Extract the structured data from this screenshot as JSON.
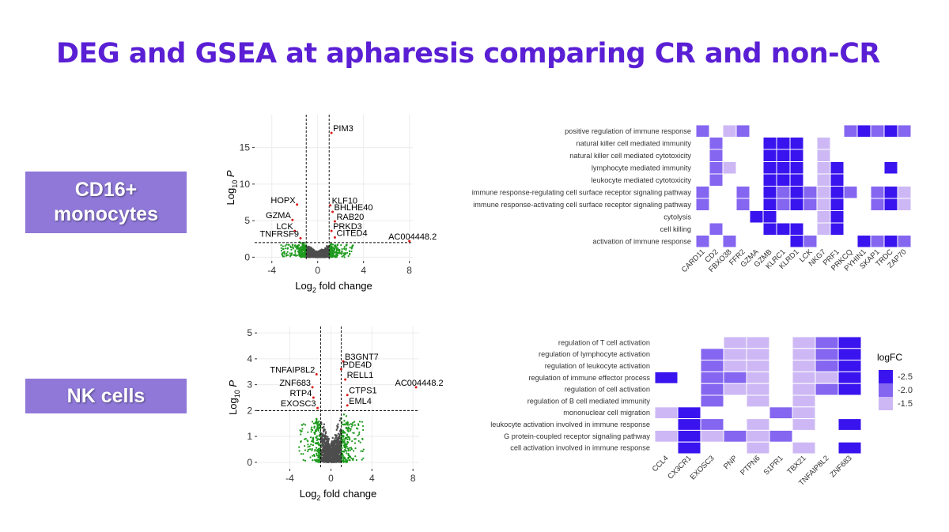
{
  "title": "DEG and GSEA at apharesis comparing CR and non-CR",
  "colors": {
    "title": "#5a1fd4",
    "label_box": "#8f78d8",
    "heat_dark": "#3a14ee",
    "heat_mid": "#8466f0",
    "heat_light": "#cdb8f5",
    "point_ns": "#4d4d4d",
    "point_sig": "#1e9a1e",
    "point_red": "#d81b1b"
  },
  "labels": {
    "cd16": "CD16+\nmonocytes",
    "nk": "NK cells"
  },
  "chart_data": [
    {
      "id": "volcano_cd16",
      "type": "scatter",
      "xlabel": "Log2 fold change",
      "ylabel": "Log10 P",
      "xlim": [
        -5.5,
        8.3
      ],
      "ylim": [
        -0.5,
        19.5
      ],
      "xticks": [
        -4,
        0,
        4,
        8
      ],
      "yticks": [
        0,
        5,
        10,
        15
      ],
      "fc_cutoff": [
        -1,
        1
      ],
      "p_cutoff": 2,
      "grid": true,
      "labeled_genes": [
        {
          "gene": "PIM3",
          "x": 1.2,
          "y": 17
        },
        {
          "gene": "HOPX",
          "x": -1.8,
          "y": 7.2
        },
        {
          "gene": "KLF10",
          "x": 1.1,
          "y": 7.1
        },
        {
          "gene": "BHLHE40",
          "x": 1.3,
          "y": 6.2
        },
        {
          "gene": "GZMA",
          "x": -2.2,
          "y": 5.1
        },
        {
          "gene": "RAB20",
          "x": 1.5,
          "y": 4.9
        },
        {
          "gene": "LCK",
          "x": -2.0,
          "y": 3.6
        },
        {
          "gene": "PRKD3",
          "x": 1.2,
          "y": 3.6
        },
        {
          "gene": "TNFRSF9",
          "x": -1.5,
          "y": 2.6
        },
        {
          "gene": "CITED4",
          "x": 1.5,
          "y": 2.7
        },
        {
          "gene": "AC004448.2",
          "x": 8.0,
          "y": 2.2
        }
      ]
    },
    {
      "id": "heatmap_cd16",
      "type": "heatmap",
      "rows": [
        "positive regulation of immune response",
        "natural killer cell mediated immunity",
        "natural killer cell mediated cytotoxicity",
        "lymphocyte mediated immunity",
        "leukocyte mediated cytotoxicity",
        "immune response-regulating cell surface receptor signaling pathway",
        "immune response-activating cell surface receptor signaling pathway",
        "cytolysis",
        "cell killing",
        "activation of immune response"
      ],
      "columns": [
        "CARD11",
        "CD2",
        "FBXO38",
        "FFR2",
        "GZMA",
        "GZMB",
        "KLRC1",
        "KLRD1",
        "LCK",
        "NKG7",
        "PRF1",
        "PRKCQ",
        "PYHIN1",
        "SKAP1",
        "TRDC",
        "ZAP70"
      ],
      "levels": [
        [
          2,
          0,
          3,
          2,
          0,
          0,
          0,
          0,
          0,
          0,
          0,
          2,
          1,
          2,
          1,
          2
        ],
        [
          0,
          2,
          0,
          0,
          0,
          1,
          1,
          1,
          0,
          3,
          0,
          0,
          0,
          0,
          0,
          0
        ],
        [
          0,
          2,
          0,
          0,
          0,
          1,
          1,
          1,
          0,
          3,
          0,
          0,
          0,
          0,
          0,
          0
        ],
        [
          0,
          2,
          3,
          0,
          0,
          1,
          1,
          1,
          0,
          3,
          1,
          0,
          0,
          0,
          1,
          0
        ],
        [
          0,
          2,
          0,
          0,
          0,
          1,
          1,
          1,
          0,
          3,
          1,
          0,
          0,
          0,
          0,
          0
        ],
        [
          2,
          0,
          0,
          2,
          0,
          1,
          2,
          1,
          2,
          3,
          1,
          2,
          0,
          2,
          1,
          3
        ],
        [
          2,
          0,
          0,
          2,
          0,
          1,
          2,
          1,
          2,
          3,
          1,
          0,
          0,
          2,
          1,
          3
        ],
        [
          0,
          0,
          0,
          0,
          1,
          1,
          0,
          0,
          0,
          3,
          1,
          0,
          0,
          0,
          0,
          0
        ],
        [
          0,
          2,
          0,
          0,
          0,
          1,
          1,
          1,
          0,
          3,
          1,
          0,
          0,
          0,
          0,
          0
        ],
        [
          2,
          0,
          2,
          0,
          0,
          0,
          0,
          1,
          2,
          0,
          0,
          0,
          1,
          2,
          1,
          2
        ]
      ]
    },
    {
      "id": "volcano_nk",
      "type": "scatter",
      "xlabel": "Log2 fold change",
      "ylabel": "Log10 P",
      "xlim": [
        -7.2,
        8.6
      ],
      "ylim": [
        -0.25,
        5.25
      ],
      "xticks": [
        -4,
        0,
        4,
        8
      ],
      "yticks": [
        0,
        1,
        2,
        3,
        4,
        5
      ],
      "fc_cutoff": [
        -1,
        1
      ],
      "p_cutoff": 2,
      "grid": true,
      "labeled_genes": [
        {
          "gene": "B3GNT7",
          "x": 1.2,
          "y": 3.9
        },
        {
          "gene": "PDE4D",
          "x": 1.0,
          "y": 3.6
        },
        {
          "gene": "TNFAIP8L2",
          "x": -1.4,
          "y": 3.4
        },
        {
          "gene": "RELL1",
          "x": 1.4,
          "y": 3.2
        },
        {
          "gene": "AC004448.2",
          "x": 8.3,
          "y": 2.9
        },
        {
          "gene": "ZNF683",
          "x": -1.8,
          "y": 2.9
        },
        {
          "gene": "CTPS1",
          "x": 1.6,
          "y": 2.6
        },
        {
          "gene": "RTP4",
          "x": -1.7,
          "y": 2.5
        },
        {
          "gene": "EML4",
          "x": 1.6,
          "y": 2.2
        },
        {
          "gene": "EXOSC3",
          "x": -1.3,
          "y": 2.1
        }
      ]
    },
    {
      "id": "heatmap_nk",
      "type": "heatmap",
      "rows": [
        "regulation of T cell activation",
        "regulation of lymphocyte activation",
        "regulation of leukocyte activation",
        "regulation of immune effector process",
        "regulation of cell activation",
        "regulation of B cell mediated immunity",
        "mononuclear cell migration",
        "leukocyte activation involved in immune response",
        "G protein-coupled receptor signaling pathway",
        "cell activation involved in immune response"
      ],
      "columns": [
        "CCL4",
        "CX3CR1",
        "EXOSC3",
        "PNP",
        "PTPN6",
        "S1PR1",
        "TBX21",
        "TNFAIP8L2",
        "ZNF683"
      ],
      "levels": [
        [
          0,
          0,
          0,
          3,
          3,
          0,
          3,
          2,
          1
        ],
        [
          0,
          0,
          2,
          3,
          3,
          0,
          3,
          2,
          1
        ],
        [
          0,
          0,
          2,
          3,
          3,
          0,
          3,
          2,
          1
        ],
        [
          1,
          0,
          2,
          2,
          3,
          0,
          3,
          3,
          1
        ],
        [
          0,
          0,
          2,
          3,
          3,
          0,
          3,
          2,
          1
        ],
        [
          0,
          0,
          2,
          0,
          3,
          0,
          3,
          0,
          0
        ],
        [
          3,
          1,
          0,
          0,
          0,
          2,
          3,
          0,
          0
        ],
        [
          0,
          1,
          2,
          0,
          3,
          0,
          3,
          0,
          1
        ],
        [
          3,
          1,
          3,
          2,
          3,
          2,
          0,
          0,
          0
        ],
        [
          0,
          1,
          0,
          0,
          3,
          0,
          3,
          0,
          1
        ]
      ],
      "legend": {
        "title": "logFC",
        "ticks": [
          "-2.5",
          "-2.0",
          "-1.5"
        ],
        "placement": "right"
      }
    }
  ]
}
